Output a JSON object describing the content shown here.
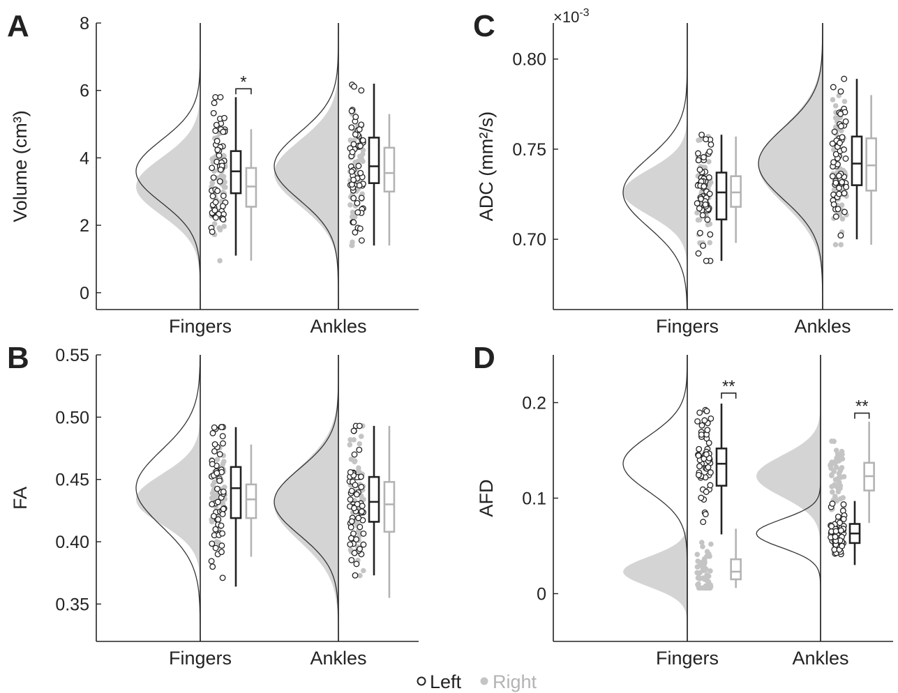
{
  "legend": {
    "left": "Left",
    "right": "Right"
  },
  "colors": {
    "left": "#222222",
    "right": "#b3b3b3",
    "density_fill": "#d4d4d4",
    "axis": "#222222"
  },
  "chart_data": [
    {
      "id": "A",
      "type": "box",
      "ylabel": "Volume (cm³)",
      "ylim": [
        -0.5,
        8
      ],
      "yticks": [
        0,
        2,
        4,
        6,
        8
      ],
      "ytick_labels": [
        "0",
        "2",
        "4",
        "6",
        "8"
      ],
      "categories": [
        "Fingers",
        "Ankles"
      ],
      "exponent_label": "",
      "series": [
        {
          "name": "Left",
          "boxes": [
            {
              "whislo": 1.1,
              "q1": 2.95,
              "med": 3.6,
              "q3": 4.2,
              "whishi": 5.8
            },
            {
              "whislo": 1.4,
              "q1": 3.25,
              "med": 3.75,
              "q3": 4.6,
              "whishi": 6.2
            }
          ]
        },
        {
          "name": "Right",
          "boxes": [
            {
              "whislo": 0.95,
              "q1": 2.55,
              "med": 3.15,
              "q3": 3.7,
              "whishi": 4.85
            },
            {
              "whislo": 1.4,
              "q1": 3.0,
              "med": 3.55,
              "q3": 4.3,
              "whishi": 5.3
            }
          ]
        }
      ],
      "significance": [
        {
          "category": "Fingers",
          "label": "*",
          "y": 6.05
        }
      ]
    },
    {
      "id": "B",
      "type": "box",
      "ylabel": "FA",
      "ylim": [
        0.32,
        0.55
      ],
      "yticks": [
        0.35,
        0.4,
        0.45,
        0.5,
        0.55
      ],
      "ytick_labels": [
        "0.35",
        "0.40",
        "0.45",
        "0.50",
        "0.55"
      ],
      "categories": [
        "Fingers",
        "Ankles"
      ],
      "exponent_label": "",
      "series": [
        {
          "name": "Left",
          "boxes": [
            {
              "whislo": 0.364,
              "q1": 0.419,
              "med": 0.443,
              "q3": 0.46,
              "whishi": 0.492
            },
            {
              "whislo": 0.373,
              "q1": 0.416,
              "med": 0.432,
              "q3": 0.452,
              "whishi": 0.493
            }
          ]
        },
        {
          "name": "Right",
          "boxes": [
            {
              "whislo": 0.388,
              "q1": 0.419,
              "med": 0.434,
              "q3": 0.446,
              "whishi": 0.478
            },
            {
              "whislo": 0.355,
              "q1": 0.408,
              "med": 0.43,
              "q3": 0.448,
              "whishi": 0.493
            }
          ]
        }
      ],
      "significance": []
    },
    {
      "id": "C",
      "type": "box",
      "ylabel": "ADC (mm²/s)",
      "ylim": [
        0.661,
        0.82
      ],
      "yticks": [
        0.7,
        0.75,
        0.8
      ],
      "ytick_labels": [
        "0.70",
        "0.75",
        "0.80"
      ],
      "categories": [
        "Fingers",
        "Ankles"
      ],
      "exponent_label": "×10-3",
      "series": [
        {
          "name": "Left",
          "boxes": [
            {
              "whislo": 0.688,
              "q1": 0.711,
              "med": 0.726,
              "q3": 0.737,
              "whishi": 0.758
            },
            {
              "whislo": 0.7,
              "q1": 0.73,
              "med": 0.742,
              "q3": 0.757,
              "whishi": 0.789
            }
          ]
        },
        {
          "name": "Right",
          "boxes": [
            {
              "whislo": 0.698,
              "q1": 0.718,
              "med": 0.726,
              "q3": 0.735,
              "whishi": 0.757
            },
            {
              "whislo": 0.697,
              "q1": 0.727,
              "med": 0.741,
              "q3": 0.756,
              "whishi": 0.78
            }
          ]
        }
      ],
      "significance": []
    },
    {
      "id": "D",
      "type": "box",
      "ylabel": "AFD",
      "ylim": [
        -0.05,
        0.25
      ],
      "yticks": [
        0,
        0.1,
        0.2
      ],
      "ytick_labels": [
        "0",
        "0.1",
        "0.2"
      ],
      "categories": [
        "Fingers",
        "Ankles"
      ],
      "exponent_label": "",
      "series": [
        {
          "name": "Left",
          "boxes": [
            {
              "whislo": 0.062,
              "q1": 0.113,
              "med": 0.136,
              "q3": 0.152,
              "whishi": 0.199
            },
            {
              "whislo": 0.03,
              "q1": 0.053,
              "med": 0.063,
              "q3": 0.073,
              "whishi": 0.097
            }
          ]
        },
        {
          "name": "Right",
          "boxes": [
            {
              "whislo": 0.006,
              "q1": 0.015,
              "med": 0.023,
              "q3": 0.036,
              "whishi": 0.068
            },
            {
              "whislo": 0.074,
              "q1": 0.108,
              "med": 0.123,
              "q3": 0.137,
              "whishi": 0.18
            }
          ]
        }
      ],
      "significance": [
        {
          "category": "Fingers",
          "label": "**",
          "y": 0.21
        },
        {
          "category": "Ankles",
          "label": "**",
          "y": 0.189
        }
      ]
    }
  ]
}
